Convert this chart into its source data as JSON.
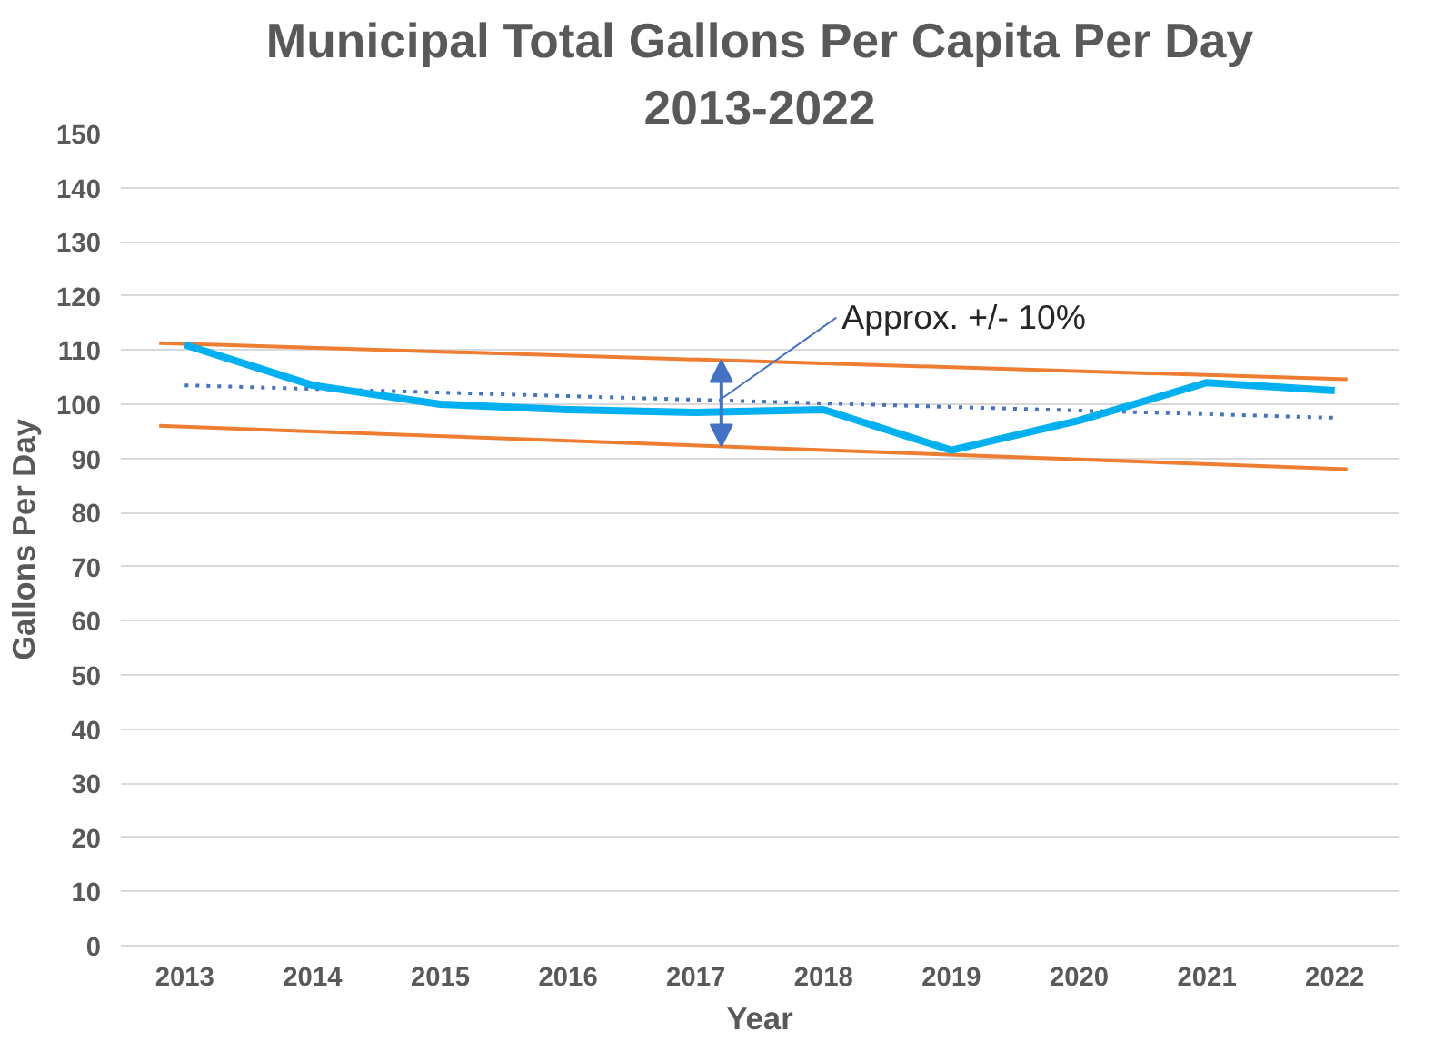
{
  "chart_data": {
    "type": "line",
    "title": "Municipal Total Gallons Per Capita Per Day",
    "subtitle": "2013-2022",
    "xlabel": "Year",
    "ylabel": "Gallons Per Day",
    "x": [
      2013,
      2014,
      2015,
      2016,
      2017,
      2018,
      2019,
      2020,
      2021,
      2022
    ],
    "xlim": [
      2012.5,
      2022.5
    ],
    "xticks": [
      2013,
      2014,
      2015,
      2016,
      2017,
      2018,
      2019,
      2020,
      2021,
      2022
    ],
    "ylim": [
      0,
      150
    ],
    "yticks": [
      0,
      10,
      20,
      30,
      40,
      50,
      60,
      70,
      80,
      90,
      100,
      110,
      120,
      130,
      140,
      150
    ],
    "grid": "y",
    "marker": "none",
    "series": [
      {
        "color": "#ed7d31",
        "x": [
          2012.8,
          2022.1
        ],
        "values": [
          111.3,
          104.6
        ],
        "line_style": "solid"
      },
      {
        "color": "#ed7d31",
        "x": [
          2012.8,
          2022.1
        ],
        "values": [
          96,
          88
        ],
        "line_style": "solid"
      },
      {
        "color": "#4472c4",
        "x": [
          2013,
          2022
        ],
        "values": [
          103.5,
          97.5
        ],
        "line_style": "dotted"
      },
      {
        "color": "#00b0f0",
        "values": [
          111,
          103.5,
          100,
          99,
          98.5,
          99,
          91.5,
          97,
          104,
          102.5
        ],
        "line_style": "solid"
      }
    ],
    "annotations": [
      {
        "text": "Approx. +/- 10%",
        "x": 2017.2,
        "y": 101
      }
    ]
  }
}
